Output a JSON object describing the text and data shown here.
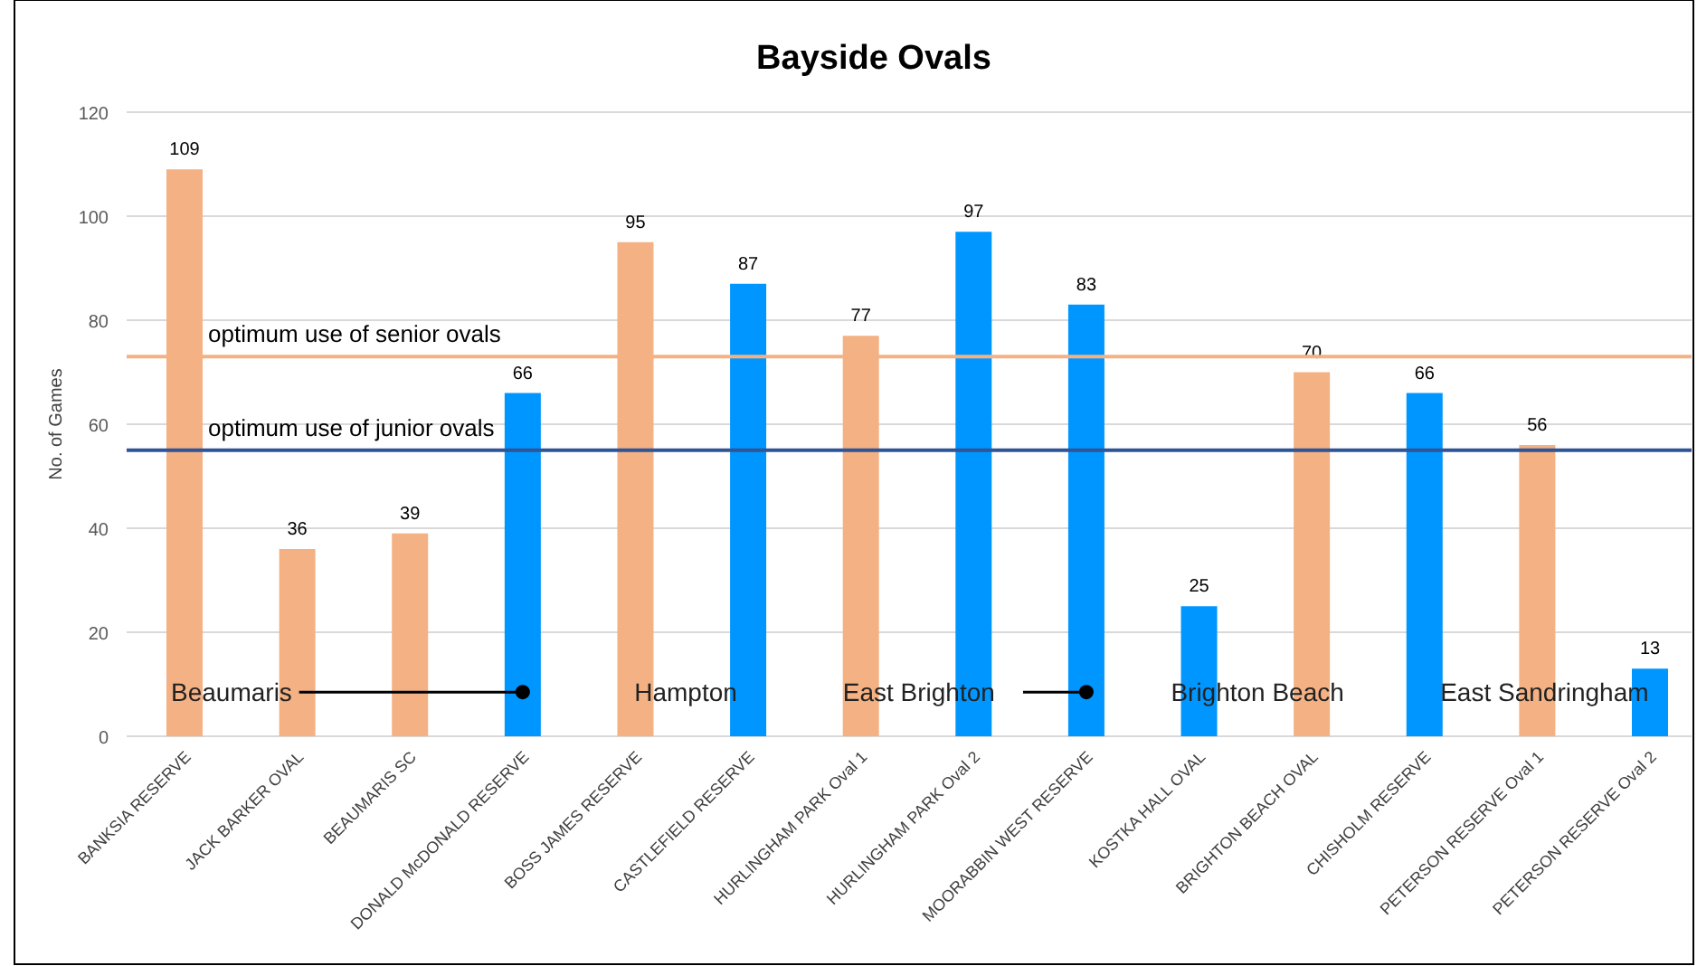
{
  "chart_data": {
    "type": "bar",
    "title": "Bayside Ovals",
    "ylabel": "No. of Games",
    "categories": [
      "BANKSIA RESERVE",
      "JACK BARKER OVAL",
      "BEAUMARIS SC",
      "DONALD McDONALD RESERVE",
      "BOSS JAMES RESERVE",
      "CASTLEFIELD RESERVE",
      "HURLINGHAM PARK Oval 1",
      "HURLINGHAM PARK Oval 2",
      "MOORABBIN WEST RESERVE",
      "KOSTKA HALL OVAL",
      "BRIGHTON BEACH OVAL",
      "CHISHOLM RESERVE",
      "PETERSON RESERVE Oval 1",
      "PETERSON RESERVE Oval 2"
    ],
    "values": [
      109,
      36,
      39,
      66,
      95,
      87,
      77,
      97,
      83,
      25,
      70,
      66,
      56,
      13
    ],
    "colors": [
      "#f4b183",
      "#f4b183",
      "#f4b183",
      "#0096ff",
      "#f4b183",
      "#0096ff",
      "#f4b183",
      "#0096ff",
      "#0096ff",
      "#0096ff",
      "#f4b183",
      "#0096ff",
      "#f4b183",
      "#0096ff"
    ],
    "ylim": [
      0,
      120
    ],
    "yticks": [
      0,
      20,
      40,
      60,
      80,
      100,
      120
    ],
    "grid": "y",
    "data_labels": true,
    "ref_lines": [
      {
        "axis": "y",
        "value": 73,
        "label": "optimum use of senior ovals",
        "color": "#f4b183"
      },
      {
        "axis": "y",
        "value": 55,
        "label": "optimum use of junior ovals",
        "color": "#2f5597"
      }
    ],
    "annotations": [
      "Beaumaris",
      "Hampton",
      "East Brighton",
      "Brighton Beach",
      "East Sandringham"
    ]
  }
}
